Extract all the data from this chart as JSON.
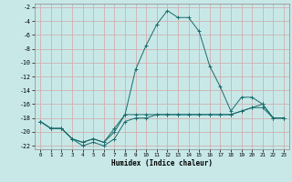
{
  "title": "",
  "xlabel": "Humidex (Indice chaleur)",
  "background_color": "#c8e8e8",
  "grid_color": "#d0b0b0",
  "line_color": "#1a6b6b",
  "xlim": [
    -0.5,
    23.5
  ],
  "ylim": [
    -22.5,
    -1.5
  ],
  "yticks": [
    -2,
    -4,
    -6,
    -8,
    -10,
    -12,
    -14,
    -16,
    -18,
    -20,
    -22
  ],
  "xticks": [
    0,
    1,
    2,
    3,
    4,
    5,
    6,
    7,
    8,
    9,
    10,
    11,
    12,
    13,
    14,
    15,
    16,
    17,
    18,
    19,
    20,
    21,
    22,
    23
  ],
  "line1_x": [
    0,
    1,
    2,
    3,
    4,
    5,
    6,
    7,
    8,
    9,
    10,
    11,
    12,
    13,
    14,
    15,
    16,
    17,
    18,
    19,
    20,
    21,
    22,
    23
  ],
  "line1_y": [
    -18.5,
    -19.5,
    -19.5,
    -21,
    -21.5,
    -21,
    -21.5,
    -19.5,
    -17.5,
    -17.5,
    -17.5,
    -17.5,
    -17.5,
    -17.5,
    -17.5,
    -17.5,
    -17.5,
    -17.5,
    -17.5,
    -17.0,
    -16.5,
    -16.0,
    -18,
    -18
  ],
  "line2_x": [
    0,
    1,
    2,
    3,
    4,
    5,
    6,
    7,
    8,
    9,
    10,
    11,
    12,
    13,
    14,
    15,
    16,
    17,
    18,
    19,
    20,
    21,
    22,
    23
  ],
  "line2_y": [
    -18.5,
    -19.5,
    -19.5,
    -21,
    -21.5,
    -21,
    -21.5,
    -20,
    -17.5,
    -11,
    -7.5,
    -4.5,
    -2.5,
    -3.5,
    -3.5,
    -5.5,
    -10.5,
    -13.5,
    -17,
    -15,
    -15,
    -16,
    -18,
    -18
  ],
  "line3_x": [
    0,
    1,
    2,
    3,
    4,
    5,
    6,
    7,
    8,
    9,
    10,
    11,
    12,
    13,
    14,
    15,
    16,
    17,
    18,
    19,
    20,
    21,
    22,
    23
  ],
  "line3_y": [
    -18.5,
    -19.5,
    -19.5,
    -21,
    -22,
    -21.5,
    -22,
    -21,
    -18.5,
    -18.0,
    -18.0,
    -17.5,
    -17.5,
    -17.5,
    -17.5,
    -17.5,
    -17.5,
    -17.5,
    -17.5,
    -17.0,
    -16.5,
    -16.5,
    -18,
    -18
  ]
}
